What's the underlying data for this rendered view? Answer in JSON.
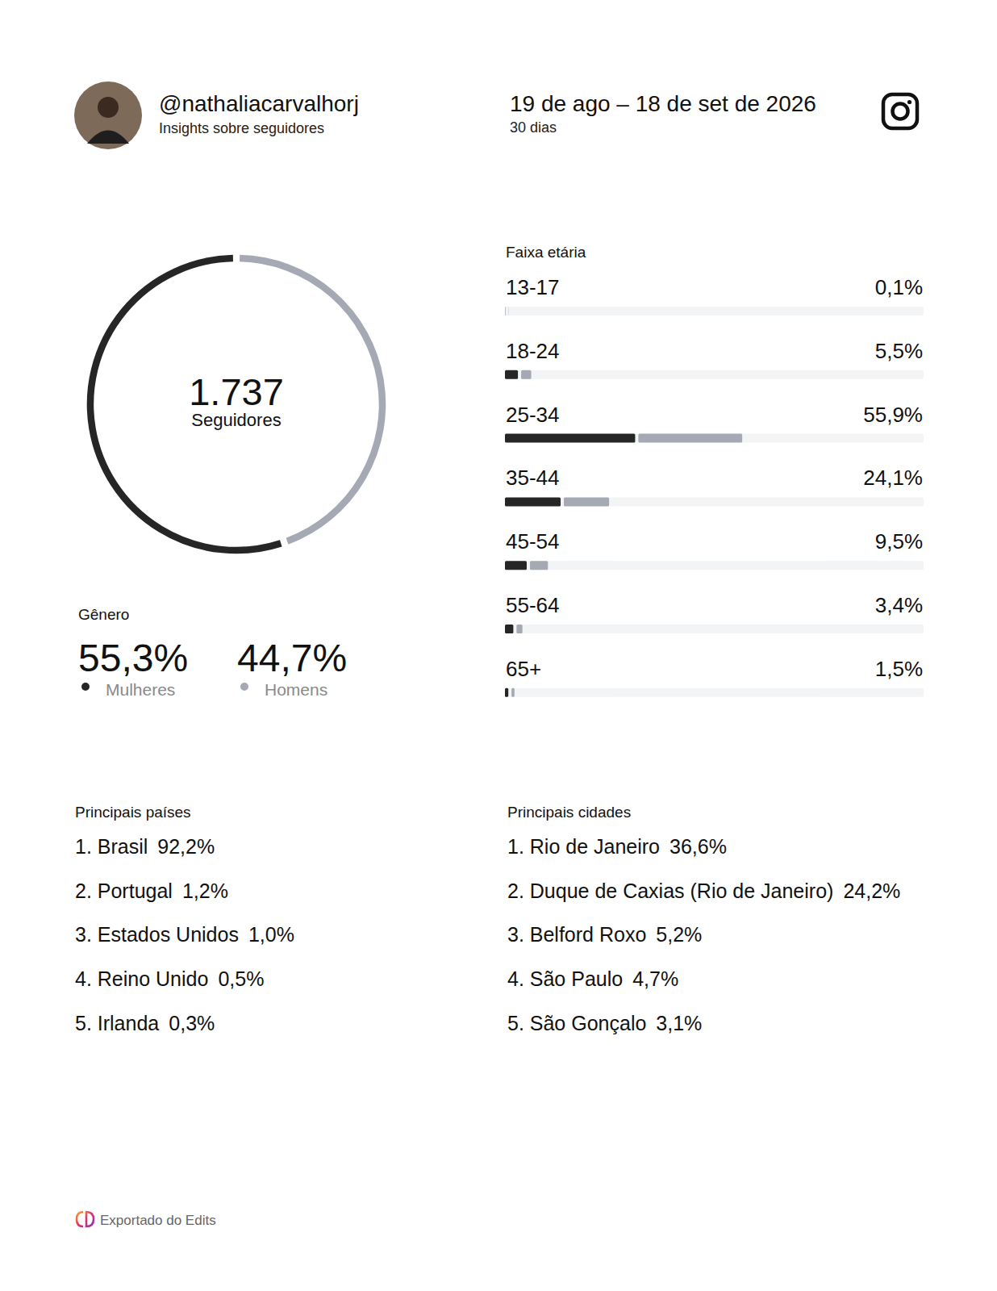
{
  "header": {
    "handle": "@nathaliacarvalhorj",
    "subtitle": "Insights sobre seguidores",
    "period": "19 de ago – 18 de set de 2026",
    "period_caption": "30 dias"
  },
  "chart_data": [
    {
      "type": "pie",
      "title": "Gênero",
      "categories": [
        "Mulheres",
        "Homens"
      ],
      "values": [
        55.3,
        44.7
      ],
      "value_labels": [
        "55,3%",
        "44,7%"
      ],
      "colors": [
        "#262626",
        "#a4a9b4"
      ],
      "center": {
        "value": "1.737",
        "label": "Seguidores"
      }
    },
    {
      "type": "bar",
      "orientation": "horizontal",
      "stacked": true,
      "title": "Faixa etária",
      "categories": [
        "13-17",
        "18-24",
        "25-34",
        "35-44",
        "45-54",
        "55-64",
        "65+"
      ],
      "series": [
        {
          "color": "#262626",
          "values": [
            0.05,
            3.1,
            31.1,
            13.3,
            5.2,
            2.0,
            0.8
          ]
        },
        {
          "color": "#a4a9b4",
          "values": [
            0.05,
            2.4,
            24.8,
            10.8,
            4.3,
            1.4,
            0.7
          ]
        }
      ],
      "total_labels": [
        "0,1%",
        "5,5%",
        "55,9%",
        "24,1%",
        "9,5%",
        "3,4%",
        "1,5%"
      ],
      "xlim": [
        0,
        100
      ],
      "tick_labels": false
    }
  ],
  "countries": {
    "title": "Principais países",
    "items": [
      {
        "label": "1. Brasil",
        "value": 92.2,
        "value_label": "92,2%"
      },
      {
        "label": "2. Portugal",
        "value": 1.2,
        "value_label": "1,2%"
      },
      {
        "label": "3. Estados Unidos",
        "value": 1.0,
        "value_label": "1,0%"
      },
      {
        "label": "4. Reino Unido",
        "value": 0.5,
        "value_label": "0,5%"
      },
      {
        "label": "5. Irlanda",
        "value": 0.3,
        "value_label": "0,3%"
      }
    ]
  },
  "cities": {
    "title": "Principais cidades",
    "items": [
      {
        "label": "1. Rio de Janeiro",
        "value": 36.6,
        "value_label": "36,6%"
      },
      {
        "label": "2. Duque de Caxias (Rio de Janeiro)",
        "value": 24.2,
        "value_label": "24,2%"
      },
      {
        "label": "3. Belford Roxo",
        "value": 5.2,
        "value_label": "5,2%"
      },
      {
        "label": "4. São Paulo",
        "value": 4.7,
        "value_label": "4,7%"
      },
      {
        "label": "5. São Gonçalo",
        "value": 3.1,
        "value_label": "3,1%"
      }
    ]
  },
  "footer": {
    "text": "Exportado do Edits"
  }
}
